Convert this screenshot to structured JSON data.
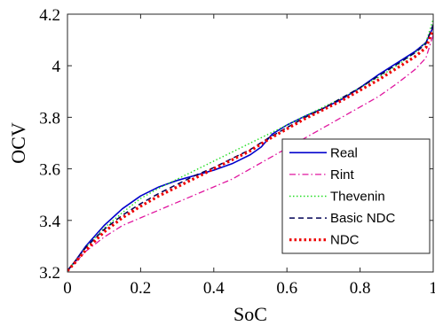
{
  "chart_data": {
    "type": "line",
    "title": "",
    "xlabel": "SoC",
    "ylabel": "OCV",
    "xlim": [
      0,
      1
    ],
    "ylim": [
      3.2,
      4.2
    ],
    "xticks": [
      0,
      0.2,
      0.4,
      0.6,
      0.8,
      1
    ],
    "yticks": [
      3.2,
      3.4,
      3.6,
      3.8,
      4,
      4.2
    ],
    "xtick_labels": [
      "0",
      "0.2",
      "0.4",
      "0.6",
      "0.8",
      "1"
    ],
    "ytick_labels": [
      "3.2",
      "3.4",
      "3.6",
      "3.8",
      "4",
      "4.2"
    ],
    "grid": false,
    "legend_position": "bottom-right",
    "series": [
      {
        "name": "Real",
        "color": "#0000cc",
        "style": "solid",
        "x": [
          0,
          0.02,
          0.05,
          0.1,
          0.15,
          0.2,
          0.25,
          0.3,
          0.35,
          0.4,
          0.45,
          0.5,
          0.53,
          0.56,
          0.6,
          0.65,
          0.7,
          0.75,
          0.8,
          0.85,
          0.9,
          0.95,
          0.98,
          1.0
        ],
        "y": [
          3.205,
          3.24,
          3.3,
          3.38,
          3.445,
          3.495,
          3.53,
          3.555,
          3.575,
          3.595,
          3.62,
          3.655,
          3.685,
          3.735,
          3.77,
          3.805,
          3.835,
          3.87,
          3.915,
          3.965,
          4.01,
          4.055,
          4.09,
          4.15
        ]
      },
      {
        "name": "Rint",
        "color": "#e0169f",
        "style": "dashdot",
        "x": [
          0,
          0.02,
          0.05,
          0.1,
          0.15,
          0.2,
          0.25,
          0.3,
          0.35,
          0.4,
          0.45,
          0.5,
          0.55,
          0.6,
          0.65,
          0.7,
          0.75,
          0.8,
          0.85,
          0.9,
          0.95,
          0.98,
          1.0
        ],
        "y": [
          3.205,
          3.235,
          3.28,
          3.335,
          3.38,
          3.41,
          3.44,
          3.47,
          3.5,
          3.53,
          3.56,
          3.6,
          3.64,
          3.68,
          3.72,
          3.76,
          3.8,
          3.84,
          3.88,
          3.93,
          3.985,
          4.03,
          4.12
        ]
      },
      {
        "name": "Thevenin",
        "color": "#22dd22",
        "style": "dotted",
        "x": [
          0,
          0.02,
          0.05,
          0.1,
          0.15,
          0.2,
          0.25,
          0.3,
          0.35,
          0.4,
          0.45,
          0.5,
          0.55,
          0.6,
          0.65,
          0.7,
          0.75,
          0.8,
          0.85,
          0.9,
          0.95,
          0.98,
          1.0
        ],
        "y": [
          3.205,
          3.24,
          3.295,
          3.37,
          3.43,
          3.485,
          3.525,
          3.56,
          3.595,
          3.63,
          3.665,
          3.7,
          3.735,
          3.77,
          3.805,
          3.84,
          3.875,
          3.915,
          3.955,
          4.0,
          4.05,
          4.09,
          4.18
        ]
      },
      {
        "name": "Basic NDC",
        "color": "#000055",
        "style": "dashed",
        "x": [
          0,
          0.02,
          0.05,
          0.1,
          0.15,
          0.2,
          0.25,
          0.3,
          0.35,
          0.4,
          0.45,
          0.5,
          0.55,
          0.6,
          0.65,
          0.7,
          0.75,
          0.8,
          0.85,
          0.9,
          0.95,
          0.98,
          1.0
        ],
        "y": [
          3.205,
          3.24,
          3.295,
          3.365,
          3.42,
          3.465,
          3.505,
          3.54,
          3.575,
          3.605,
          3.64,
          3.675,
          3.72,
          3.76,
          3.8,
          3.835,
          3.875,
          3.915,
          3.96,
          4.005,
          4.05,
          4.085,
          4.16
        ]
      },
      {
        "name": "NDC",
        "color": "#ee0000",
        "style": "dotted-thick",
        "x": [
          0,
          0.02,
          0.05,
          0.1,
          0.15,
          0.2,
          0.25,
          0.3,
          0.35,
          0.4,
          0.45,
          0.5,
          0.55,
          0.6,
          0.65,
          0.7,
          0.75,
          0.8,
          0.85,
          0.9,
          0.95,
          0.98,
          1.0
        ],
        "y": [
          3.205,
          3.235,
          3.285,
          3.355,
          3.41,
          3.455,
          3.495,
          3.53,
          3.565,
          3.6,
          3.635,
          3.67,
          3.715,
          3.755,
          3.795,
          3.83,
          3.865,
          3.905,
          3.945,
          3.99,
          4.035,
          4.07,
          4.14
        ]
      }
    ]
  }
}
